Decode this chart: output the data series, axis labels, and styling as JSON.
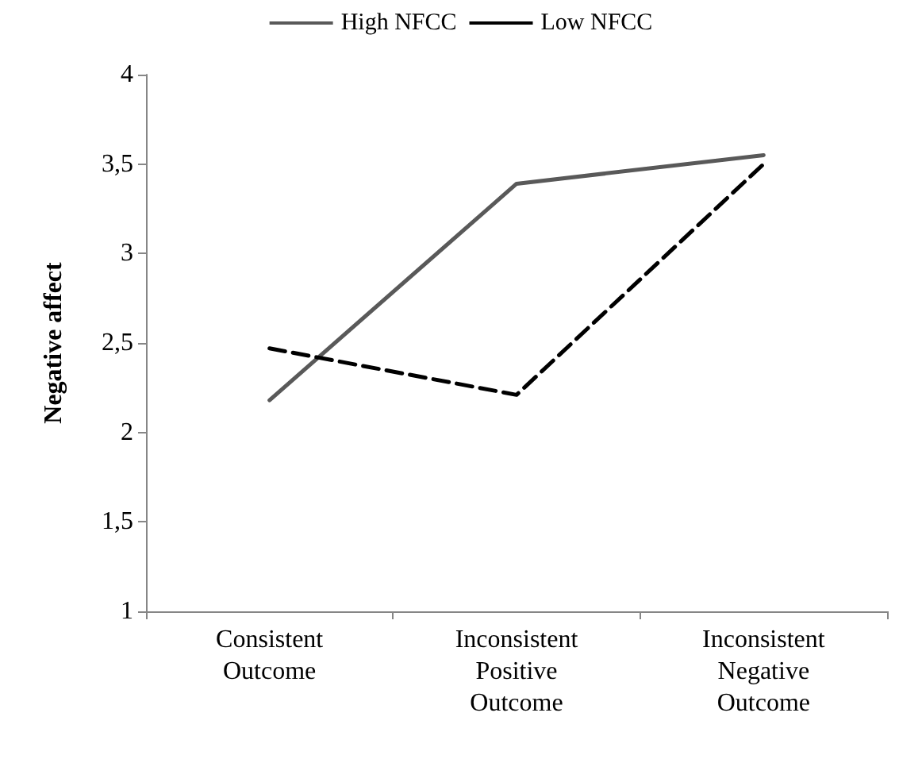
{
  "chart_data": {
    "type": "line",
    "ylabel": "Negative affect",
    "categories": [
      "Consistent\nOutcome",
      "Inconsistent\nPositive\nOutcome",
      "Inconsistent\nNegative\nOutcome"
    ],
    "series": [
      {
        "name": "High NFCC",
        "color": "#595959",
        "line_style": "solid",
        "values": [
          2.18,
          3.39,
          3.55
        ]
      },
      {
        "name": "Low NFCC",
        "color": "#000000",
        "line_style": "dashed",
        "values": [
          2.47,
          2.21,
          3.5
        ]
      }
    ],
    "ylim": [
      1,
      4
    ],
    "yticks": [
      {
        "value": 1,
        "label": "1"
      },
      {
        "value": 1.5,
        "label": "1,5"
      },
      {
        "value": 2,
        "label": "2"
      },
      {
        "value": 2.5,
        "label": "2,5"
      },
      {
        "value": 3,
        "label": "3"
      },
      {
        "value": 3.5,
        "label": "3,5"
      },
      {
        "value": 4,
        "label": "4"
      }
    ],
    "grid": false,
    "legend": "top",
    "marker": "none"
  }
}
